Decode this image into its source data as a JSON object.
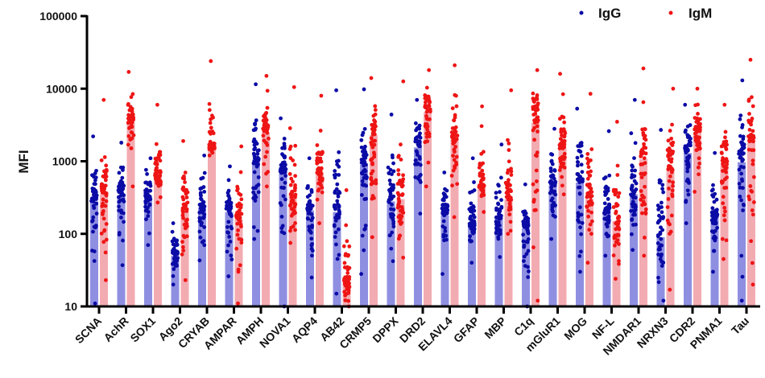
{
  "chart_data": {
    "type": "bar",
    "title": "",
    "xlabel": "",
    "ylabel": "MFI",
    "yscale": "log",
    "ylim": [
      10,
      100000
    ],
    "yticks": [
      "10",
      "100",
      "1000",
      "10000",
      "100000"
    ],
    "grid": false,
    "legend_placement": "top-right",
    "categories": [
      "SCNA",
      "AchR",
      "SOX1",
      "Ago2",
      "CRYAB",
      "AMPAR",
      "AMPH",
      "NOVA1",
      "AQP4",
      "AB42",
      "CRMP5",
      "DPPX",
      "DRD2",
      "ELAVL4",
      "GFAP",
      "MBP",
      "C1q",
      "mGluR1",
      "MOG",
      "NF-L",
      "NMDAR1",
      "NRXN3",
      "CDR2",
      "PNMA1",
      "Tau"
    ],
    "series": [
      {
        "name": "IgG",
        "bar_color": "#8f8fe2",
        "dot_color": "#0b0ba6",
        "values": [
          280,
          340,
          300,
          50,
          230,
          200,
          1050,
          690,
          210,
          200,
          900,
          280,
          1550,
          180,
          130,
          160,
          120,
          470,
          510,
          210,
          350,
          90,
          1300,
          180,
          970
        ],
        "point_ranges": [
          [
            11,
            2200
          ],
          [
            37,
            1800
          ],
          [
            70,
            1100
          ],
          [
            20,
            140
          ],
          [
            43,
            1200
          ],
          [
            26,
            850
          ],
          [
            85,
            11500
          ],
          [
            10,
            3900
          ],
          [
            25,
            1100
          ],
          [
            15,
            9500
          ],
          [
            28,
            9800
          ],
          [
            42,
            4400
          ],
          [
            190,
            7000
          ],
          [
            28,
            700
          ],
          [
            40,
            1100
          ],
          [
            48,
            1700
          ],
          [
            10,
            480
          ],
          [
            85,
            2800
          ],
          [
            30,
            5300
          ],
          [
            50,
            2600
          ],
          [
            60,
            7000
          ],
          [
            12,
            2700
          ],
          [
            140,
            6000
          ],
          [
            30,
            1300
          ],
          [
            12,
            13000
          ]
        ]
      },
      {
        "name": "IgM",
        "bar_color": "#f3abb2",
        "dot_color": "#ee1515",
        "values": [
          350,
          3400,
          700,
          200,
          1700,
          160,
          2500,
          350,
          700,
          20,
          2300,
          300,
          4700,
          2000,
          440,
          300,
          3400,
          1500,
          300,
          150,
          1070,
          730,
          2500,
          900,
          1800
        ],
        "point_ranges": [
          [
            23,
            7000
          ],
          [
            450,
            17000
          ],
          [
            270,
            6000
          ],
          [
            23,
            1900
          ],
          [
            1200,
            24000
          ],
          [
            11,
            1600
          ],
          [
            450,
            15000
          ],
          [
            75,
            10500
          ],
          [
            140,
            8000
          ],
          [
            10,
            400
          ],
          [
            90,
            14000
          ],
          [
            47,
            12600
          ],
          [
            450,
            18000
          ],
          [
            170,
            21000
          ],
          [
            200,
            5700
          ],
          [
            100,
            9500
          ],
          [
            12,
            18000
          ],
          [
            350,
            16000
          ],
          [
            40,
            8500
          ],
          [
            24,
            3500
          ],
          [
            50,
            19000
          ],
          [
            17,
            10000
          ],
          [
            380,
            10000
          ],
          [
            45,
            6000
          ],
          [
            20,
            25000
          ]
        ]
      }
    ]
  }
}
